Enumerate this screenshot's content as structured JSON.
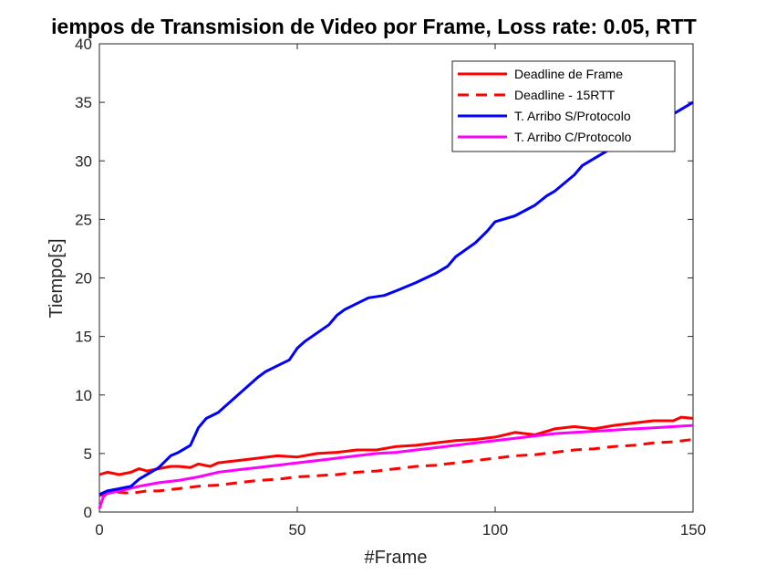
{
  "chart_data": {
    "type": "line",
    "title": "iempos de Transmision de Video por Frame, Loss rate: 0.05, RTT",
    "xlabel": "#Frame",
    "ylabel": "Tiempo[s]",
    "xlim": [
      0,
      150
    ],
    "ylim": [
      0,
      40
    ],
    "xticks": [
      0,
      50,
      100,
      150
    ],
    "yticks": [
      0,
      5,
      10,
      15,
      20,
      25,
      30,
      35,
      40
    ],
    "grid": false,
    "legend_position": "top-right",
    "series": [
      {
        "name": "Deadline de Frame",
        "color": "#ff0000",
        "style": "solid",
        "x": [
          0,
          2,
          5,
          8,
          10,
          12,
          15,
          18,
          20,
          23,
          25,
          28,
          30,
          35,
          40,
          45,
          50,
          55,
          60,
          65,
          70,
          75,
          80,
          85,
          90,
          95,
          100,
          105,
          110,
          115,
          120,
          125,
          130,
          135,
          140,
          145,
          147,
          150
        ],
        "values": [
          3.2,
          3.4,
          3.2,
          3.4,
          3.7,
          3.5,
          3.7,
          3.9,
          3.9,
          3.8,
          4.1,
          3.9,
          4.2,
          4.4,
          4.6,
          4.8,
          4.7,
          5.0,
          5.1,
          5.3,
          5.3,
          5.6,
          5.7,
          5.9,
          6.1,
          6.2,
          6.4,
          6.8,
          6.6,
          7.1,
          7.3,
          7.1,
          7.4,
          7.6,
          7.8,
          7.8,
          8.1,
          8.0
        ]
      },
      {
        "name": "Deadline - 15RTT",
        "color": "#ff0000",
        "style": "dashed",
        "x": [
          0,
          2,
          5,
          8,
          10,
          12,
          15,
          20,
          25,
          30,
          35,
          40,
          45,
          50,
          55,
          60,
          65,
          70,
          75,
          80,
          85,
          90,
          95,
          100,
          105,
          110,
          115,
          120,
          125,
          130,
          135,
          140,
          145,
          150
        ],
        "values": [
          1.4,
          1.6,
          1.7,
          1.6,
          1.7,
          1.8,
          1.8,
          2.0,
          2.2,
          2.3,
          2.5,
          2.7,
          2.8,
          3.0,
          3.1,
          3.2,
          3.4,
          3.5,
          3.7,
          3.9,
          4.0,
          4.2,
          4.4,
          4.6,
          4.8,
          4.9,
          5.1,
          5.3,
          5.4,
          5.6,
          5.7,
          5.9,
          6.0,
          6.2
        ]
      },
      {
        "name": "T. Arribo S/Protocolo",
        "color": "#0000ff",
        "style": "solid",
        "x": [
          0,
          2,
          5,
          8,
          10,
          15,
          18,
          20,
          23,
          25,
          27,
          30,
          35,
          40,
          42,
          45,
          48,
          50,
          52,
          55,
          58,
          60,
          62,
          65,
          68,
          72,
          75,
          80,
          85,
          88,
          90,
          95,
          98,
          100,
          105,
          110,
          113,
          115,
          120,
          122,
          125,
          130,
          135,
          140,
          145,
          150
        ],
        "values": [
          1.5,
          1.8,
          2.0,
          2.2,
          2.8,
          3.8,
          4.8,
          5.1,
          5.7,
          7.2,
          8.0,
          8.5,
          10.0,
          11.5,
          12.0,
          12.5,
          13.0,
          14.0,
          14.6,
          15.3,
          16.0,
          16.8,
          17.3,
          17.8,
          18.3,
          18.5,
          18.9,
          19.6,
          20.4,
          21.0,
          21.8,
          23.0,
          24.0,
          24.8,
          25.3,
          26.2,
          27.0,
          27.4,
          28.8,
          29.6,
          30.2,
          31.2,
          32.0,
          33.0,
          34.0,
          35.0
        ]
      },
      {
        "name": "T. Arribo C/Protocolo",
        "color": "#ff00ff",
        "style": "solid",
        "x": [
          0,
          1,
          2,
          5,
          10,
          15,
          20,
          25,
          30,
          35,
          40,
          45,
          50,
          55,
          60,
          65,
          70,
          75,
          80,
          85,
          90,
          95,
          100,
          105,
          110,
          115,
          120,
          125,
          130,
          135,
          140,
          145,
          150
        ],
        "values": [
          0.3,
          1.3,
          1.6,
          1.8,
          2.2,
          2.5,
          2.7,
          3.0,
          3.4,
          3.6,
          3.8,
          4.0,
          4.2,
          4.4,
          4.6,
          4.8,
          5.0,
          5.1,
          5.3,
          5.5,
          5.7,
          5.9,
          6.1,
          6.3,
          6.5,
          6.7,
          6.8,
          6.9,
          7.0,
          7.1,
          7.2,
          7.3,
          7.4
        ]
      }
    ]
  }
}
